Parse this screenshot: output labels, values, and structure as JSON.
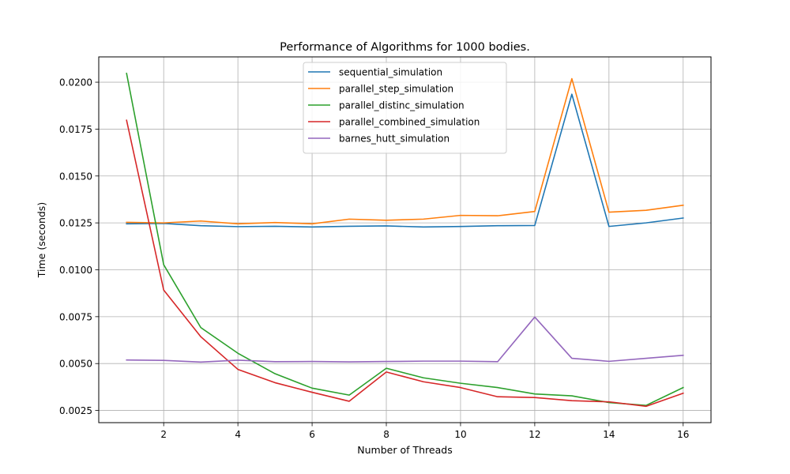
{
  "chart_data": {
    "type": "line",
    "title": "Performance of Algorithms for 1000 bodies.",
    "xlabel": "Number of Threads",
    "ylabel": "Time (seconds)",
    "x": [
      1,
      2,
      3,
      4,
      5,
      6,
      7,
      8,
      9,
      10,
      11,
      12,
      13,
      14,
      15,
      16
    ],
    "xlim": [
      0.25,
      16.75
    ],
    "ylim": [
      0.00185,
      0.02135
    ],
    "xticks": [
      2,
      4,
      6,
      8,
      10,
      12,
      14,
      16
    ],
    "xtick_labels": [
      "2",
      "4",
      "6",
      "8",
      "10",
      "12",
      "14",
      "16"
    ],
    "yticks": [
      0.0025,
      0.005,
      0.0075,
      0.01,
      0.0125,
      0.015,
      0.0175,
      0.02
    ],
    "ytick_labels": [
      "0.0025",
      "0.0050",
      "0.0075",
      "0.0100",
      "0.0125",
      "0.0150",
      "0.0175",
      "0.0200"
    ],
    "grid": true,
    "legend_position": "upper center",
    "series": [
      {
        "name": "sequential_simulation",
        "color": "#1f77b4",
        "values": [
          0.01245,
          0.01247,
          0.01235,
          0.0123,
          0.01232,
          0.01228,
          0.01232,
          0.01234,
          0.01228,
          0.01231,
          0.01235,
          0.01236,
          0.01936,
          0.01231,
          0.0125,
          0.01276
        ]
      },
      {
        "name": "parallel_step_simulation",
        "color": "#ff7f0e",
        "values": [
          0.01253,
          0.0125,
          0.0126,
          0.01245,
          0.01252,
          0.01245,
          0.0127,
          0.01264,
          0.0127,
          0.0129,
          0.01288,
          0.01311,
          0.02019,
          0.01307,
          0.01317,
          0.01344
        ]
      },
      {
        "name": "parallel_distinc_simulation",
        "color": "#2ca02c",
        "values": [
          0.02047,
          0.01027,
          0.00692,
          0.00555,
          0.00446,
          0.00369,
          0.00332,
          0.00475,
          0.00424,
          0.00395,
          0.00372,
          0.00338,
          0.00328,
          0.00292,
          0.00277,
          0.00372
        ]
      },
      {
        "name": "parallel_combined_simulation",
        "color": "#d62728",
        "values": [
          0.01797,
          0.00892,
          0.00643,
          0.00469,
          0.00398,
          0.00347,
          0.00299,
          0.00455,
          0.00403,
          0.00372,
          0.00323,
          0.00319,
          0.00302,
          0.00296,
          0.00272,
          0.00342
        ]
      },
      {
        "name": "barnes_hutt_simulation",
        "color": "#9467bd",
        "values": [
          0.00519,
          0.00517,
          0.00508,
          0.00518,
          0.0051,
          0.00511,
          0.00509,
          0.00511,
          0.00513,
          0.00513,
          0.0051,
          0.00748,
          0.00528,
          0.00512,
          0.00528,
          0.00544
        ]
      }
    ]
  }
}
